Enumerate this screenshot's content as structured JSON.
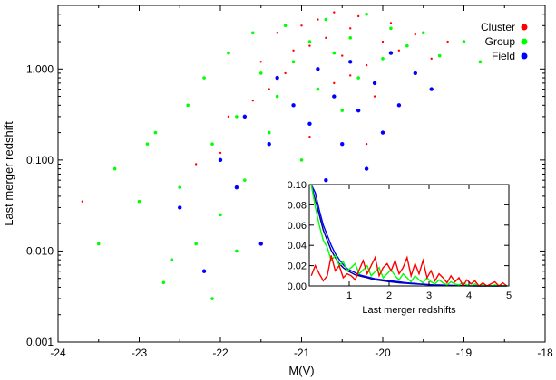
{
  "chart_data": [
    {
      "type": "scatter",
      "title": "",
      "xlabel": "M(V)",
      "ylabel": "Last merger redshift",
      "xlim": [
        -24,
        -18
      ],
      "ylim": [
        0.001,
        5
      ],
      "yscale": "log",
      "x_ticks": [
        "-24",
        "-23",
        "-22",
        "-21",
        "-20",
        "-19",
        "-18"
      ],
      "y_ticks": [
        "0.001",
        "0.010",
        "0.100",
        "1.000"
      ],
      "x_tick_values": [
        -24,
        -23,
        -22,
        -21,
        -20,
        -19,
        -18
      ],
      "y_tick_values": [
        0.001,
        0.01,
        0.1,
        1
      ],
      "legend_position": "top-right",
      "series": [
        {
          "name": "Cluster",
          "color": "#ff0000",
          "points": [
            [
              -23.7,
              0.035
            ],
            [
              -22.0,
              0.12
            ],
            [
              -21.9,
              0.3
            ],
            [
              -21.6,
              0.45
            ],
            [
              -21.5,
              1.2
            ],
            [
              -21.3,
              2.5
            ],
            [
              -21.2,
              0.9
            ],
            [
              -21.0,
              3.0
            ],
            [
              -20.9,
              1.8
            ],
            [
              -20.8,
              3.5
            ],
            [
              -20.7,
              2.2
            ],
            [
              -20.6,
              4.2
            ],
            [
              -20.5,
              1.4
            ],
            [
              -20.4,
              2.8
            ],
            [
              -20.3,
              3.8
            ],
            [
              -20.2,
              1.1
            ],
            [
              -20.0,
              2.0
            ],
            [
              -19.9,
              3.2
            ],
            [
              -19.8,
              1.6
            ],
            [
              -19.6,
              2.4
            ],
            [
              -19.4,
              1.3
            ],
            [
              -20.6,
              0.7
            ],
            [
              -20.9,
              0.18
            ],
            [
              -20.2,
              0.15
            ],
            [
              -21.4,
              0.6
            ],
            [
              -20.1,
              0.5
            ],
            [
              -21.1,
              1.6
            ],
            [
              -22.3,
              0.09
            ],
            [
              -19.2,
              2.0
            ],
            [
              -20.4,
              0.85
            ]
          ]
        },
        {
          "name": "Group",
          "color": "#00ff00",
          "points": [
            [
              -23.3,
              0.08
            ],
            [
              -23.0,
              0.035
            ],
            [
              -22.8,
              0.2
            ],
            [
              -22.7,
              0.0045
            ],
            [
              -22.5,
              0.05
            ],
            [
              -22.4,
              0.4
            ],
            [
              -22.3,
              0.012
            ],
            [
              -22.2,
              0.8
            ],
            [
              -22.1,
              0.15
            ],
            [
              -22.0,
              0.025
            ],
            [
              -21.9,
              1.5
            ],
            [
              -21.8,
              0.3
            ],
            [
              -21.7,
              0.06
            ],
            [
              -21.6,
              2.5
            ],
            [
              -21.5,
              0.9
            ],
            [
              -21.4,
              0.2
            ],
            [
              -21.3,
              0.5
            ],
            [
              -21.2,
              3.0
            ],
            [
              -21.1,
              1.2
            ],
            [
              -21.0,
              0.1
            ],
            [
              -20.9,
              2.0
            ],
            [
              -20.8,
              0.6
            ],
            [
              -20.7,
              3.5
            ],
            [
              -20.6,
              1.5
            ],
            [
              -20.5,
              0.35
            ],
            [
              -20.4,
              2.2
            ],
            [
              -20.3,
              0.8
            ],
            [
              -20.2,
              4.0
            ],
            [
              -20.0,
              1.3
            ],
            [
              -19.9,
              2.8
            ],
            [
              -19.7,
              1.8
            ],
            [
              -19.5,
              2.5
            ],
            [
              -19.3,
              1.4
            ],
            [
              -19.0,
              2.0
            ],
            [
              -18.8,
              1.2
            ],
            [
              -23.5,
              0.012
            ],
            [
              -22.6,
              0.008
            ],
            [
              -22.9,
              0.15
            ],
            [
              -21.8,
              0.01
            ],
            [
              -22.1,
              0.003
            ]
          ]
        },
        {
          "name": "Field",
          "color": "#0000ff",
          "points": [
            [
              -22.5,
              0.03
            ],
            [
              -22.2,
              0.006
            ],
            [
              -22.0,
              0.1
            ],
            [
              -21.8,
              0.05
            ],
            [
              -21.7,
              0.3
            ],
            [
              -21.5,
              0.012
            ],
            [
              -21.4,
              0.15
            ],
            [
              -21.3,
              0.8
            ],
            [
              -21.2,
              0.04
            ],
            [
              -21.1,
              0.4
            ],
            [
              -21.0,
              0.02
            ],
            [
              -20.9,
              0.25
            ],
            [
              -20.8,
              1.0
            ],
            [
              -20.7,
              0.06
            ],
            [
              -20.6,
              0.5
            ],
            [
              -20.5,
              0.15
            ],
            [
              -20.4,
              1.2
            ],
            [
              -20.3,
              0.35
            ],
            [
              -20.2,
              0.08
            ],
            [
              -20.1,
              0.7
            ],
            [
              -20.0,
              0.2
            ],
            [
              -19.9,
              1.5
            ],
            [
              -19.8,
              0.4
            ],
            [
              -19.6,
              0.9
            ],
            [
              -19.4,
              0.6
            ]
          ]
        }
      ]
    },
    {
      "type": "line",
      "title": "",
      "xlabel": "Last merger redshifts",
      "ylabel": "",
      "xlim": [
        0,
        5
      ],
      "ylim": [
        0,
        0.1
      ],
      "x_ticks": [
        "1",
        "2",
        "3",
        "4",
        "5"
      ],
      "y_ticks": [
        "0.00",
        "0.02",
        "0.04",
        "0.06",
        "0.08",
        "0.10"
      ],
      "x_tick_values": [
        1,
        2,
        3,
        4,
        5
      ],
      "y_tick_values": [
        0,
        0.02,
        0.04,
        0.06,
        0.08,
        0.1
      ],
      "x": [
        0.05,
        0.15,
        0.25,
        0.35,
        0.45,
        0.55,
        0.65,
        0.75,
        0.85,
        0.95,
        1.05,
        1.15,
        1.25,
        1.35,
        1.45,
        1.55,
        1.65,
        1.75,
        1.85,
        1.95,
        2.05,
        2.15,
        2.25,
        2.35,
        2.45,
        2.55,
        2.65,
        2.75,
        2.85,
        2.95,
        3.05,
        3.15,
        3.25,
        3.35,
        3.45,
        3.55,
        3.65,
        3.75,
        3.85,
        3.95,
        4.05,
        4.15,
        4.25,
        4.35,
        4.45,
        4.55,
        4.65,
        4.75,
        4.85,
        4.95
      ],
      "series": [
        {
          "color": "#00008b",
          "values": [
            0.1,
            0.085,
            0.07,
            0.055,
            0.045,
            0.035,
            0.028,
            0.022,
            0.018,
            0.015,
            0.013,
            0.011,
            0.01,
            0.009,
            0.008,
            0.007,
            0.006,
            0.0055,
            0.005,
            0.0045,
            0.004,
            0.0035,
            0.003,
            0.0028,
            0.0025,
            0.0022,
            0.002,
            0.0018,
            0.0015,
            0.0012,
            0.001,
            0.0009,
            0.0008,
            0.0007,
            0.0006,
            0.0005,
            0.0004,
            0.0003,
            0.0002,
            0.0002,
            0.0001,
            0.0001,
            0,
            0,
            0,
            0,
            0,
            0,
            0,
            0
          ]
        },
        {
          "color": "#0000ff",
          "values": [
            0.1,
            0.092,
            0.075,
            0.06,
            0.05,
            0.04,
            0.032,
            0.026,
            0.021,
            0.017,
            0.015,
            0.013,
            0.011,
            0.01,
            0.009,
            0.008,
            0.007,
            0.0065,
            0.006,
            0.0055,
            0.005,
            0.0045,
            0.004,
            0.0035,
            0.003,
            0.0028,
            0.0025,
            0.002,
            0.0018,
            0.0015,
            0.0012,
            0.001,
            0.0009,
            0.0008,
            0.0007,
            0.0005,
            0.0004,
            0.0003,
            0.0002,
            0.0001,
            0.0001,
            0,
            0,
            0,
            0,
            0,
            0,
            0,
            0,
            0
          ]
        },
        {
          "color": "#00ff00",
          "values": [
            0.1,
            0.078,
            0.06,
            0.045,
            0.038,
            0.025,
            0.03,
            0.02,
            0.024,
            0.015,
            0.018,
            0.022,
            0.012,
            0.016,
            0.02,
            0.01,
            0.014,
            0.018,
            0.008,
            0.012,
            0.016,
            0.01,
            0.006,
            0.012,
            0.008,
            0.004,
            0.01,
            0.006,
            0.003,
            0.008,
            0.004,
            0.002,
            0.006,
            0.003,
            0.001,
            0.004,
            0.002,
            0.001,
            0.003,
            0.001,
            0,
            0.002,
            0,
            0.001,
            0,
            0,
            0.001,
            0,
            0,
            0
          ]
        },
        {
          "color": "#ff0000",
          "values": [
            0.01,
            0.02,
            0.012,
            0.005,
            0.01,
            0.03,
            0.015,
            0.02,
            0.008,
            0.012,
            0.01,
            0.006,
            0.016,
            0.025,
            0.012,
            0.02,
            0.028,
            0.01,
            0.018,
            0.022,
            0.015,
            0.025,
            0.012,
            0.018,
            0.028,
            0.01,
            0.022,
            0.012,
            0.025,
            0.008,
            0.015,
            0.005,
            0.012,
            0.008,
            0.003,
            0.01,
            0.004,
            0.008,
            0,
            0.006,
            0.002,
            0.005,
            0,
            0.003,
            0,
            0.002,
            0.004,
            0,
            0.003,
            0
          ]
        }
      ]
    }
  ]
}
